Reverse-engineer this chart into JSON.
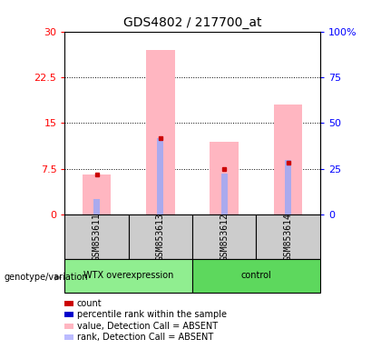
{
  "title": "GDS4802 / 217700_at",
  "samples": [
    "GSM853611",
    "GSM853613",
    "GSM853612",
    "GSM853614"
  ],
  "group_label_1": "WTX overexpression",
  "group_label_2": "control",
  "group_color_1": "#90EE90",
  "group_color_2": "#5DD85D",
  "pink_bars": [
    6.5,
    27.0,
    12.0,
    18.0
  ],
  "blue_marks": [
    2.5,
    12.5,
    6.7,
    9.0
  ],
  "red_marks": [
    6.5,
    12.5,
    7.5,
    8.5
  ],
  "ylim_left": [
    0,
    30
  ],
  "ylim_right": [
    0,
    100
  ],
  "yticks_left": [
    0,
    7.5,
    15,
    22.5,
    30
  ],
  "ytick_labels_left": [
    "0",
    "7.5",
    "15",
    "22.5",
    "30"
  ],
  "yticks_right": [
    0,
    25,
    50,
    75,
    100
  ],
  "ytick_labels_right": [
    "0",
    "25",
    "50",
    "75",
    "100%"
  ],
  "pink_color": "#FFB6C1",
  "blue_color": "#AAAAEE",
  "red_color": "#CC0000",
  "blue_dark_color": "#0000CC",
  "genotype_label": "genotype/variation",
  "legend_labels": [
    "count",
    "percentile rank within the sample",
    "value, Detection Call = ABSENT",
    "rank, Detection Call = ABSENT"
  ],
  "legend_colors": [
    "#CC0000",
    "#0000CC",
    "#FFB6C1",
    "#BBBBFF"
  ]
}
